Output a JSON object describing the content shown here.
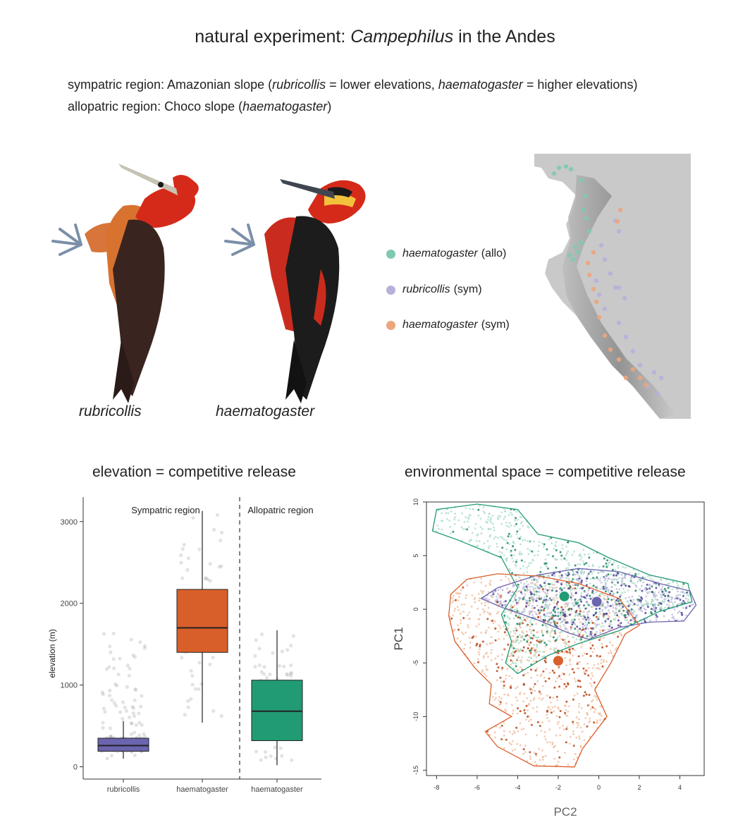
{
  "header": {
    "title_plain": "natural experiment: ",
    "title_italic": "Campephilus",
    "title_end": " in the Andes",
    "line1": {
      "a": "sympatric region: Amazonian slope (",
      "b": "rubricollis",
      "c": " = lower elevations, ",
      "d": "haematogaster",
      "e": " = higher elevations)"
    },
    "line2": {
      "a": "allopatric region: Choco slope (",
      "b": "haematogaster",
      "c": ")"
    }
  },
  "illustration": {
    "left_label": "rubricollis",
    "right_label": "haematogaster"
  },
  "map_legend": [
    {
      "name": "haematogaster",
      "tag": "(allo)",
      "color": "#7fcaae"
    },
    {
      "name": "rubricollis",
      "tag": "(sym)",
      "color": "#b5b1da"
    },
    {
      "name": "haematogaster",
      "tag": "(sym)",
      "color": "#eca57c"
    }
  ],
  "colors": {
    "rubricollis_sym": "#6b64ae",
    "haematogaster_sym": "#d95f2a",
    "haematogaster_allo": "#219b73"
  },
  "chart_data": [
    {
      "type": "box",
      "title": "elevation = competitive release",
      "ylabel": "elevation (m)",
      "xlabel": "",
      "ylim": [
        -150,
        3300
      ],
      "yticks": [
        0,
        1000,
        2000,
        3000
      ],
      "categories": [
        "rubricollis",
        "haematogaster",
        "haematogaster"
      ],
      "region_labels": [
        "Sympatric region",
        "Allopatric region"
      ],
      "divider_after_category": 2,
      "grid": false,
      "boxes": [
        {
          "category": "rubricollis",
          "region": "Sympatric region",
          "color": "#6b64ae",
          "min": 100,
          "q1": 190,
          "median": 260,
          "q3": 350,
          "max": 560,
          "outlier_max": 1700
        },
        {
          "category": "haematogaster",
          "region": "Sympatric region",
          "color": "#d95f2a",
          "min": 540,
          "q1": 1400,
          "median": 1700,
          "q3": 2170,
          "max": 3130
        },
        {
          "category": "haematogaster",
          "region": "Allopatric region",
          "color": "#219b73",
          "min": 20,
          "q1": 320,
          "median": 680,
          "q3": 1060,
          "max": 1670
        }
      ]
    },
    {
      "type": "scatter",
      "title": "environmental space = competitive release",
      "xlabel": "PC2",
      "ylabel": "PC1",
      "xlim": [
        -8.5,
        5.2
      ],
      "ylim": [
        -15.5,
        10
      ],
      "xticks": [
        -8,
        -6,
        -4,
        -2,
        0,
        2,
        4
      ],
      "yticks": [
        10,
        5,
        0,
        -5,
        -10,
        -15
      ],
      "grid": false,
      "centroids": [
        {
          "group": "haematogaster (allo)",
          "x": -1.7,
          "y": 1.2,
          "color": "#219b73"
        },
        {
          "group": "rubricollis (sym)",
          "x": -0.1,
          "y": 0.7,
          "color": "#6b64ae"
        },
        {
          "group": "haematogaster (sym)",
          "x": -2.0,
          "y": -4.8,
          "color": "#d95f2a"
        }
      ],
      "envelopes": [
        {
          "group": "haematogaster (allo)",
          "color": "#219b73",
          "points": [
            [
              -8,
              9.3
            ],
            [
              -6,
              9.8
            ],
            [
              -4,
              9.3
            ],
            [
              -3,
              7
            ],
            [
              -1,
              6.2
            ],
            [
              0.5,
              4.8
            ],
            [
              2.5,
              3.2
            ],
            [
              4.4,
              2.4
            ],
            [
              4.6,
              0.7
            ],
            [
              3,
              -0.2
            ],
            [
              1,
              -2
            ],
            [
              -1,
              -3.2
            ],
            [
              -2.5,
              -4.3
            ],
            [
              -4,
              -6
            ],
            [
              -4.6,
              -5
            ],
            [
              -4.3,
              -3
            ],
            [
              -4.8,
              -0.5
            ],
            [
              -4,
              2
            ],
            [
              -4.8,
              4.8
            ],
            [
              -7,
              6.5
            ],
            [
              -8.2,
              7.3
            ]
          ]
        },
        {
          "group": "rubricollis (sym)",
          "color": "#6b64ae",
          "points": [
            [
              -5,
              2
            ],
            [
              -3,
              3.2
            ],
            [
              -1,
              3.8
            ],
            [
              1,
              3.5
            ],
            [
              3,
              2.4
            ],
            [
              4.5,
              1.7
            ],
            [
              4.8,
              0.4
            ],
            [
              4.2,
              -1.1
            ],
            [
              2.5,
              -1.2
            ],
            [
              1,
              -1.7
            ],
            [
              -0.5,
              -2.8
            ],
            [
              -1.5,
              -2.2
            ],
            [
              -3,
              -1
            ],
            [
              -4.8,
              0.2
            ],
            [
              -5.8,
              1
            ]
          ]
        },
        {
          "group": "haematogaster (sym)",
          "color": "#d95f2a",
          "points": [
            [
              -7.3,
              1.4
            ],
            [
              -6.5,
              2.8
            ],
            [
              -5,
              3.3
            ],
            [
              -3,
              3.1
            ],
            [
              -1,
              2.4
            ],
            [
              1,
              1
            ],
            [
              2,
              -1.5
            ],
            [
              1.3,
              -2.3
            ],
            [
              0.6,
              -5
            ],
            [
              -0.2,
              -7.5
            ],
            [
              0.4,
              -10
            ],
            [
              -0.8,
              -13
            ],
            [
              -1.2,
              -14.7
            ],
            [
              -3.2,
              -14.6
            ],
            [
              -5,
              -12.8
            ],
            [
              -5.6,
              -11.4
            ],
            [
              -4.3,
              -10
            ],
            [
              -5.4,
              -8.8
            ],
            [
              -5.3,
              -7
            ],
            [
              -6.1,
              -5.5
            ],
            [
              -7.1,
              -3
            ],
            [
              -7.4,
              -0.6
            ]
          ]
        }
      ]
    }
  ]
}
